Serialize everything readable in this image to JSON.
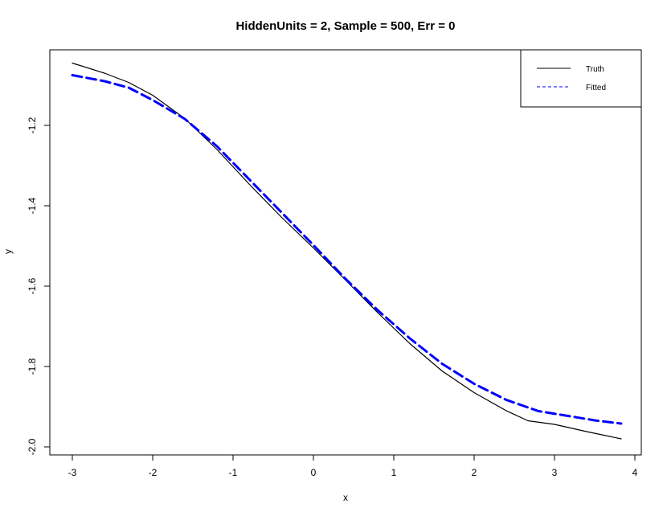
{
  "chart_data": {
    "type": "line",
    "title": "HiddenUnits = 2, Sample = 500, Err = 0",
    "xlabel": "x",
    "ylabel": "y",
    "xlim": [
      -3.0,
      3.83
    ],
    "ylim": [
      -2.0,
      -1.04
    ],
    "x_ticks": [
      -3,
      -2,
      -1,
      0,
      1,
      2,
      3,
      4
    ],
    "y_ticks": [
      -2.0,
      -1.8,
      -1.6,
      -1.4,
      -1.2
    ],
    "legend_position": "top-right",
    "grid": false,
    "series": [
      {
        "name": "Truth",
        "color": "#000000",
        "style": "solid",
        "x": [
          -3.0,
          -2.6,
          -2.3,
          -2.0,
          -1.6,
          -1.2,
          -0.8,
          -0.4,
          0.0,
          0.4,
          0.8,
          1.2,
          1.6,
          2.0,
          2.4,
          2.67,
          3.0,
          3.4,
          3.83
        ],
        "y": [
          -1.045,
          -1.07,
          -1.093,
          -1.125,
          -1.183,
          -1.26,
          -1.346,
          -1.428,
          -1.505,
          -1.585,
          -1.666,
          -1.743,
          -1.811,
          -1.865,
          -1.91,
          -1.935,
          -1.944,
          -1.962,
          -1.98
        ]
      },
      {
        "name": "Fitted",
        "color": "#0000ff",
        "style": "dashed",
        "x": [
          -3.0,
          -2.6,
          -2.3,
          -2.0,
          -1.6,
          -1.2,
          -0.8,
          -0.4,
          0.0,
          0.4,
          0.8,
          1.2,
          1.6,
          2.0,
          2.4,
          2.8,
          3.2,
          3.5,
          3.83
        ],
        "y": [
          -1.075,
          -1.09,
          -1.106,
          -1.137,
          -1.184,
          -1.252,
          -1.334,
          -1.416,
          -1.498,
          -1.582,
          -1.66,
          -1.73,
          -1.793,
          -1.843,
          -1.883,
          -1.911,
          -1.924,
          -1.934,
          -1.942
        ]
      }
    ]
  }
}
